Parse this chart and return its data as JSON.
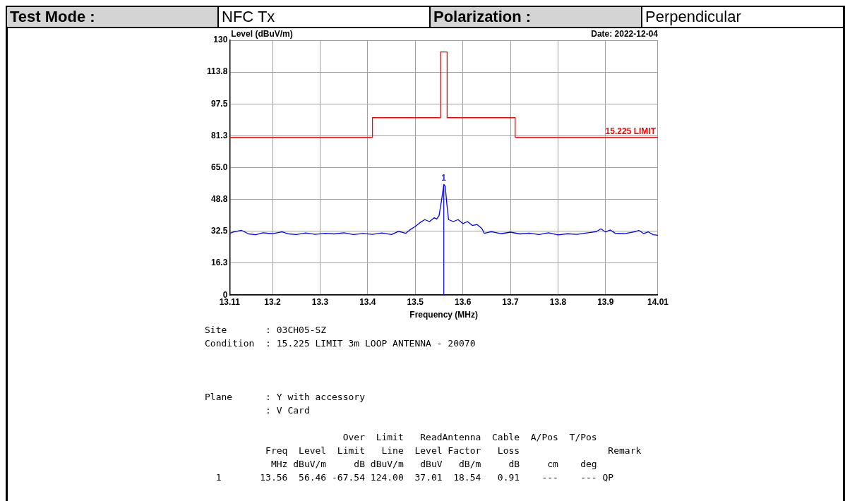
{
  "chart_data": {
    "type": "line",
    "subtitle": "Date: 2022-12-04",
    "xlabel": "Frequency (MHz)",
    "ylabel": "Level (dBuV/m)",
    "xlim": [
      13.11,
      14.01
    ],
    "xticks": [
      13.11,
      13.2,
      13.3,
      13.4,
      13.5,
      13.6,
      13.7,
      13.8,
      13.9,
      14.01
    ],
    "ylim": [
      0,
      130
    ],
    "yticks": [
      0,
      16.3,
      32.5,
      48.8,
      {
        "value": 65,
        "label": "65.0"
      },
      81.3,
      97.5,
      113.8,
      130
    ],
    "grid": true,
    "legend": false,
    "marker": "none",
    "line_style": "solid",
    "series": [
      {
        "name": "15.225 LIMIT",
        "type": "step",
        "color": "#ff0000",
        "x": [
          13.11,
          13.41,
          13.553,
          13.567,
          13.71,
          14.01
        ],
        "values": [
          80.5,
          90.5,
          124,
          90.5,
          80.5,
          80.5
        ]
      },
      {
        "type": "line",
        "color": "#0000ff",
        "x": [
          13.11,
          13.12,
          13.135,
          13.15,
          13.165,
          13.18,
          13.2,
          13.22,
          13.235,
          13.25,
          13.27,
          13.29,
          13.31,
          13.33,
          13.35,
          13.37,
          13.39,
          13.41,
          13.43,
          13.45,
          13.465,
          13.48,
          13.49,
          13.5,
          13.51,
          13.52,
          13.53,
          13.54,
          13.545,
          13.55,
          13.555,
          13.56,
          13.563,
          13.567,
          13.57,
          13.58,
          13.59,
          13.6,
          13.61,
          13.62,
          13.63,
          13.64,
          13.645,
          13.66,
          13.68,
          13.7,
          13.72,
          13.74,
          13.76,
          13.78,
          13.8,
          13.82,
          13.84,
          13.86,
          13.88,
          13.89,
          13.9,
          13.91,
          13.92,
          13.94,
          13.96,
          13.97,
          13.98,
          13.99,
          14.0,
          14.01
        ],
        "values": [
          31.5,
          32.3,
          33.0,
          31.2,
          30.8,
          31.8,
          31.3,
          32.2,
          31.2,
          30.9,
          31.7,
          31.0,
          31.5,
          31.2,
          31.8,
          30.9,
          31.4,
          31.0,
          31.7,
          30.9,
          32.5,
          31.5,
          33.5,
          35.0,
          37.0,
          38.5,
          37.5,
          39.5,
          38.8,
          40.5,
          48,
          56.46,
          55.5,
          45,
          38.5,
          37.5,
          38.5,
          36.5,
          37.5,
          35.5,
          36.0,
          34.0,
          31.5,
          32.3,
          31.3,
          32.1,
          31.2,
          31.6,
          30.9,
          31.8,
          30.7,
          31.3,
          31.0,
          31.7,
          32.3,
          33.8,
          32.2,
          33.2,
          31.6,
          31.3,
          32.2,
          33.0,
          31.4,
          32.2,
          30.8,
          30.5
        ]
      }
    ],
    "annotations": [
      "Test Mode :",
      "NFC Tx",
      "Polarization :",
      "Perpendicular",
      {
        "text": "1",
        "x": 13.56,
        "y": 56.46
      },
      "Site       : 03CH05-SZ",
      "Condition  : 15.225 LIMIT 3m LOOP ANTENNA - 20070",
      "Plane      : Y with accessory",
      "           : V Card",
      "                         Over  Limit   ReadAntenna  Cable  A/Pos  T/Pos",
      "           Freq  Level  Limit   Line  Level Factor   Loss                Remark",
      "            MHz dBuV/m     dB dBuV/m   dBuV   dB/m     dB     cm    deg",
      "  1       13.56  56.46 -67.54 124.00  37.01  18.54   0.91    ---    --- QP"
    ]
  }
}
